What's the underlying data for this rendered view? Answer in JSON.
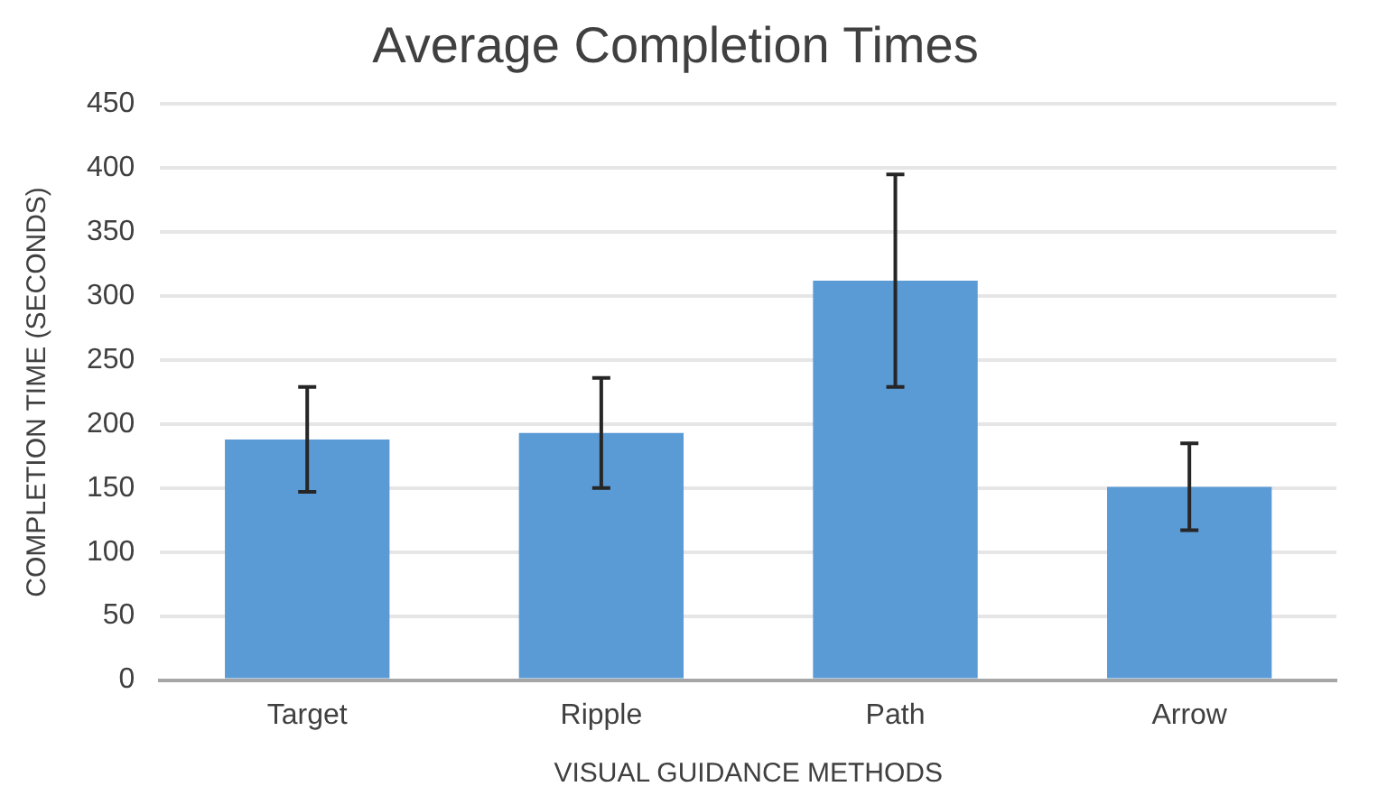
{
  "chart_data": {
    "type": "bar",
    "title": "Average Completion Times",
    "xlabel": "VISUAL GUIDANCE METHODS",
    "ylabel": "COMPLETION TIME (SECONDS)",
    "categories": [
      "Target",
      "Ripple",
      "Path",
      "Arrow"
    ],
    "values": [
      188,
      193,
      312,
      151
    ],
    "errors": [
      41,
      43,
      83,
      34
    ],
    "color": "#5b9bd5",
    "ylim": [
      0,
      450
    ],
    "yticks": [
      0,
      50,
      100,
      150,
      200,
      250,
      300,
      350,
      400,
      450
    ],
    "grid": "y",
    "legend": false
  }
}
